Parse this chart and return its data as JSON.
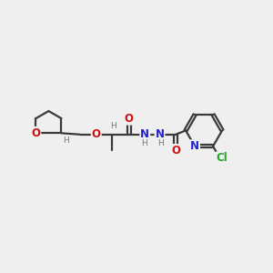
{
  "bg_color": "#efefef",
  "bond_color": "#3a3a3a",
  "bond_lw": 1.6,
  "N_color": "#2222cc",
  "O_color": "#cc1111",
  "Cl_color": "#22aa22",
  "H_color": "#777777",
  "font_size_atom": 8.5,
  "font_size_h": 6.5,
  "figsize": [
    3.0,
    3.0
  ],
  "dpi": 100,
  "xlim": [
    0,
    10
  ],
  "ylim": [
    0,
    10
  ]
}
